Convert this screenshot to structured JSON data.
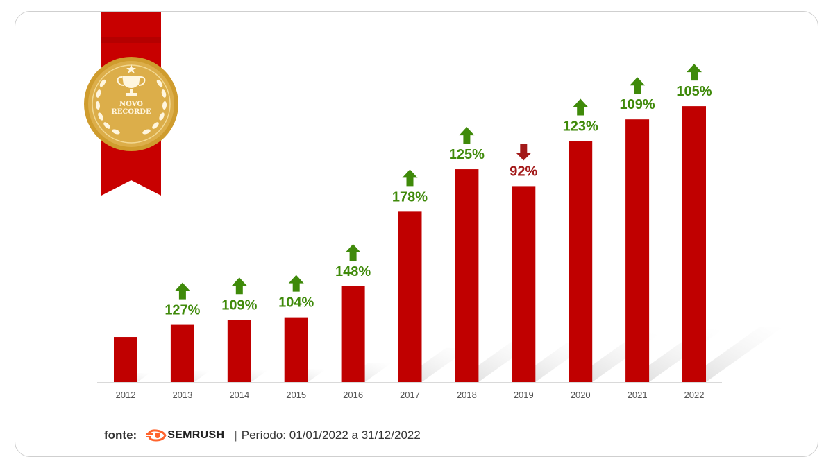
{
  "badge": {
    "line1": "NOVO",
    "line2": "RECORDE",
    "icon": "trophy-icon",
    "ribbon_color": "#c80000",
    "medal_color": "#d4a338"
  },
  "chart_data": {
    "type": "bar",
    "categories": [
      "2012",
      "2013",
      "2014",
      "2015",
      "2016",
      "2017",
      "2018",
      "2019",
      "2020",
      "2021",
      "2022"
    ],
    "values": [
      16,
      20.3,
      22.1,
      23,
      34,
      60.5,
      75.6,
      69.6,
      85.6,
      93.3,
      98
    ],
    "growth_labels": [
      null,
      "127%",
      "109%",
      "104%",
      "148%",
      "178%",
      "125%",
      "92%",
      "123%",
      "109%",
      "105%"
    ],
    "growth_direction": [
      null,
      "up",
      "up",
      "up",
      "up",
      "up",
      "up",
      "down",
      "up",
      "up",
      "up"
    ],
    "ylim": [
      0,
      100
    ],
    "bar_color": "#c00000",
    "up_color": "#3f8a0a",
    "down_color": "#a31a1a",
    "axis_color": "#d9d9d9",
    "tick_color": "#555555",
    "title": "",
    "xlabel": "",
    "ylabel": "",
    "grid": false
  },
  "footer": {
    "fonte_label": "fonte:",
    "brand": "SEMRUSH",
    "separator": "|",
    "periodo": "Período: 01/01/2022 a 31/12/2022",
    "brand_icon": "semrush-fire-icon",
    "brand_icon_color": "#ff642d"
  }
}
